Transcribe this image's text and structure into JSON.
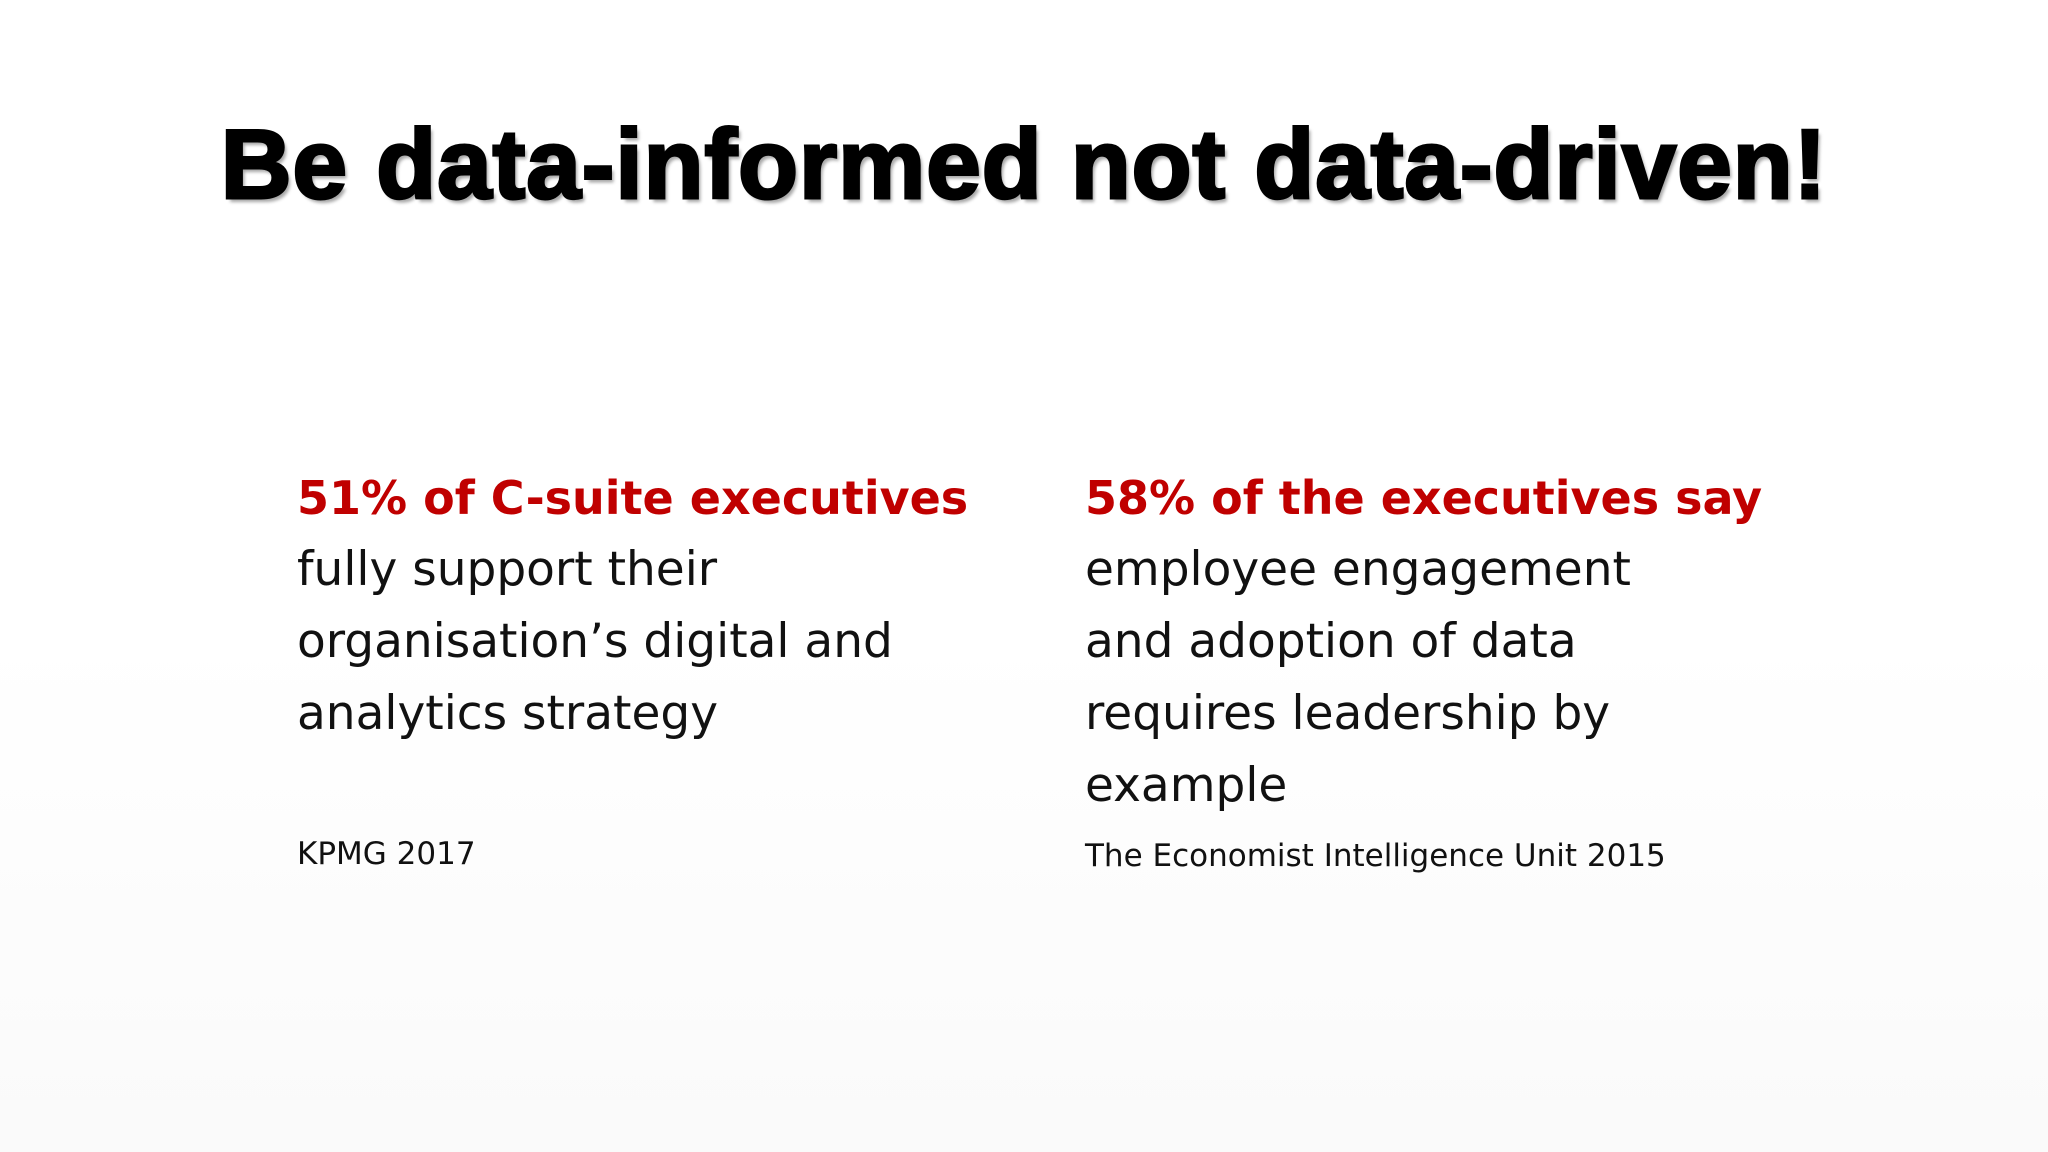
{
  "slide": {
    "title": "Be data-informed not data-driven!",
    "left": {
      "highlight": "51% of C-suite executives",
      "lines": [
        "fully support their",
        "organisation’s digital and",
        "analytics strategy"
      ],
      "source": "KPMG 2017"
    },
    "right": {
      "highlight": "58% of the executives say",
      "lines": [
        "employee engagement",
        "and adoption of data",
        "requires leadership by",
        "example"
      ],
      "source": "The Economist Intelligence Unit 2015"
    }
  },
  "colors": {
    "highlight": "#c00000",
    "text": "#111111",
    "title": "#000000",
    "background": "#ffffff"
  }
}
